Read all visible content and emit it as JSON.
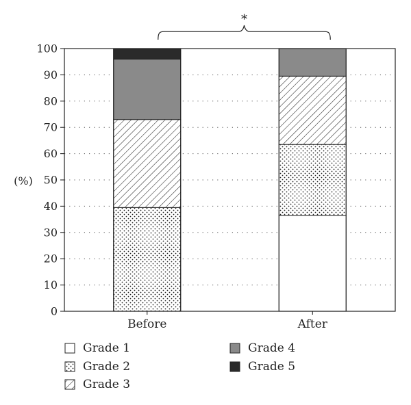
{
  "chart_data": {
    "type": "bar",
    "stacked": true,
    "ylabel": "(%)",
    "ylim": [
      0,
      100
    ],
    "yticks": [
      0,
      10,
      20,
      30,
      40,
      50,
      60,
      70,
      80,
      90,
      100
    ],
    "categories": [
      "Before",
      "After"
    ],
    "series": [
      {
        "name": "Grade 1",
        "pattern": "blank",
        "color": "#ffffff",
        "values": [
          0,
          36.5
        ]
      },
      {
        "name": "Grade 2",
        "pattern": "dots",
        "color": "#ffffff",
        "values": [
          39.5,
          27
        ]
      },
      {
        "name": "Grade 3",
        "pattern": "hatch",
        "color": "#ffffff",
        "values": [
          33.5,
          26
        ]
      },
      {
        "name": "Grade 4",
        "pattern": "solid",
        "color": "#8a8a8a",
        "values": [
          23,
          10.5
        ]
      },
      {
        "name": "Grade 5",
        "pattern": "solid",
        "color": "#2a2a2a",
        "values": [
          4,
          0
        ]
      }
    ],
    "grid": "dotted-horizontal",
    "legend_position": "bottom",
    "annotation": {
      "text": "*",
      "spans": [
        "Before",
        "After"
      ]
    }
  }
}
